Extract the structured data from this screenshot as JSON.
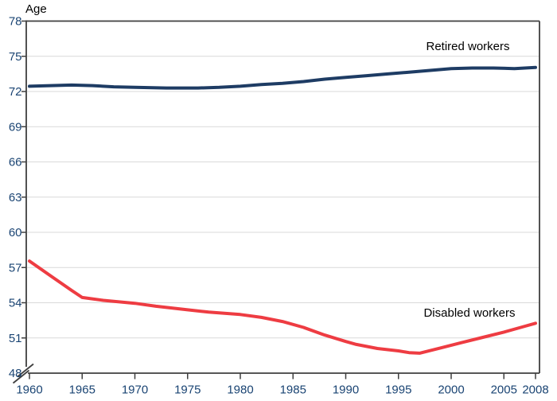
{
  "colors": {
    "text": "#1a4473",
    "axis": "#3f3f3f",
    "grid": "#d9d9d9",
    "background": "#ffffff",
    "retired_line": "#1e3c64",
    "disabled_line": "#ee3c42"
  },
  "chart_data": {
    "type": "line",
    "title": "",
    "y_axis": {
      "label": "Age",
      "min": 48,
      "max": 78,
      "ticks": [
        78,
        75,
        72,
        69,
        66,
        63,
        60,
        57,
        54,
        51,
        48
      ],
      "broken_axis": true,
      "grid": true
    },
    "x_axis": {
      "label": "",
      "min": 1960,
      "max": 2008,
      "ticks": [
        1960,
        1965,
        1970,
        1975,
        1980,
        1985,
        1990,
        1995,
        2000,
        2005,
        2008
      ],
      "grid": false
    },
    "legend_position": "inline-annotations",
    "series": [
      {
        "name": "Retired workers",
        "color": "#1e3c64",
        "points": [
          [
            1960,
            72.45
          ],
          [
            1962,
            72.5
          ],
          [
            1964,
            72.55
          ],
          [
            1966,
            72.5
          ],
          [
            1968,
            72.4
          ],
          [
            1970,
            72.35
          ],
          [
            1973,
            72.3
          ],
          [
            1976,
            72.3
          ],
          [
            1978,
            72.35
          ],
          [
            1980,
            72.45
          ],
          [
            1982,
            72.6
          ],
          [
            1984,
            72.7
          ],
          [
            1986,
            72.85
          ],
          [
            1988,
            73.05
          ],
          [
            1990,
            73.2
          ],
          [
            1992,
            73.35
          ],
          [
            1994,
            73.5
          ],
          [
            1996,
            73.65
          ],
          [
            1998,
            73.8
          ],
          [
            2000,
            73.95
          ],
          [
            2002,
            74.0
          ],
          [
            2004,
            74.0
          ],
          [
            2006,
            73.95
          ],
          [
            2008,
            74.05
          ]
        ]
      },
      {
        "name": "Disabled workers",
        "color": "#ee3c42",
        "points": [
          [
            1960,
            57.55
          ],
          [
            1962,
            56.3
          ],
          [
            1964,
            55.05
          ],
          [
            1965,
            54.45
          ],
          [
            1967,
            54.2
          ],
          [
            1970,
            53.95
          ],
          [
            1972,
            53.7
          ],
          [
            1975,
            53.4
          ],
          [
            1977,
            53.2
          ],
          [
            1980,
            53.0
          ],
          [
            1982,
            52.75
          ],
          [
            1984,
            52.4
          ],
          [
            1986,
            51.9
          ],
          [
            1988,
            51.25
          ],
          [
            1990,
            50.7
          ],
          [
            1991,
            50.45
          ],
          [
            1993,
            50.1
          ],
          [
            1995,
            49.9
          ],
          [
            1996,
            49.75
          ],
          [
            1997,
            49.7
          ],
          [
            1999,
            50.15
          ],
          [
            2001,
            50.6
          ],
          [
            2003,
            51.05
          ],
          [
            2005,
            51.5
          ],
          [
            2007,
            52.0
          ],
          [
            2008,
            52.25
          ]
        ]
      }
    ]
  }
}
